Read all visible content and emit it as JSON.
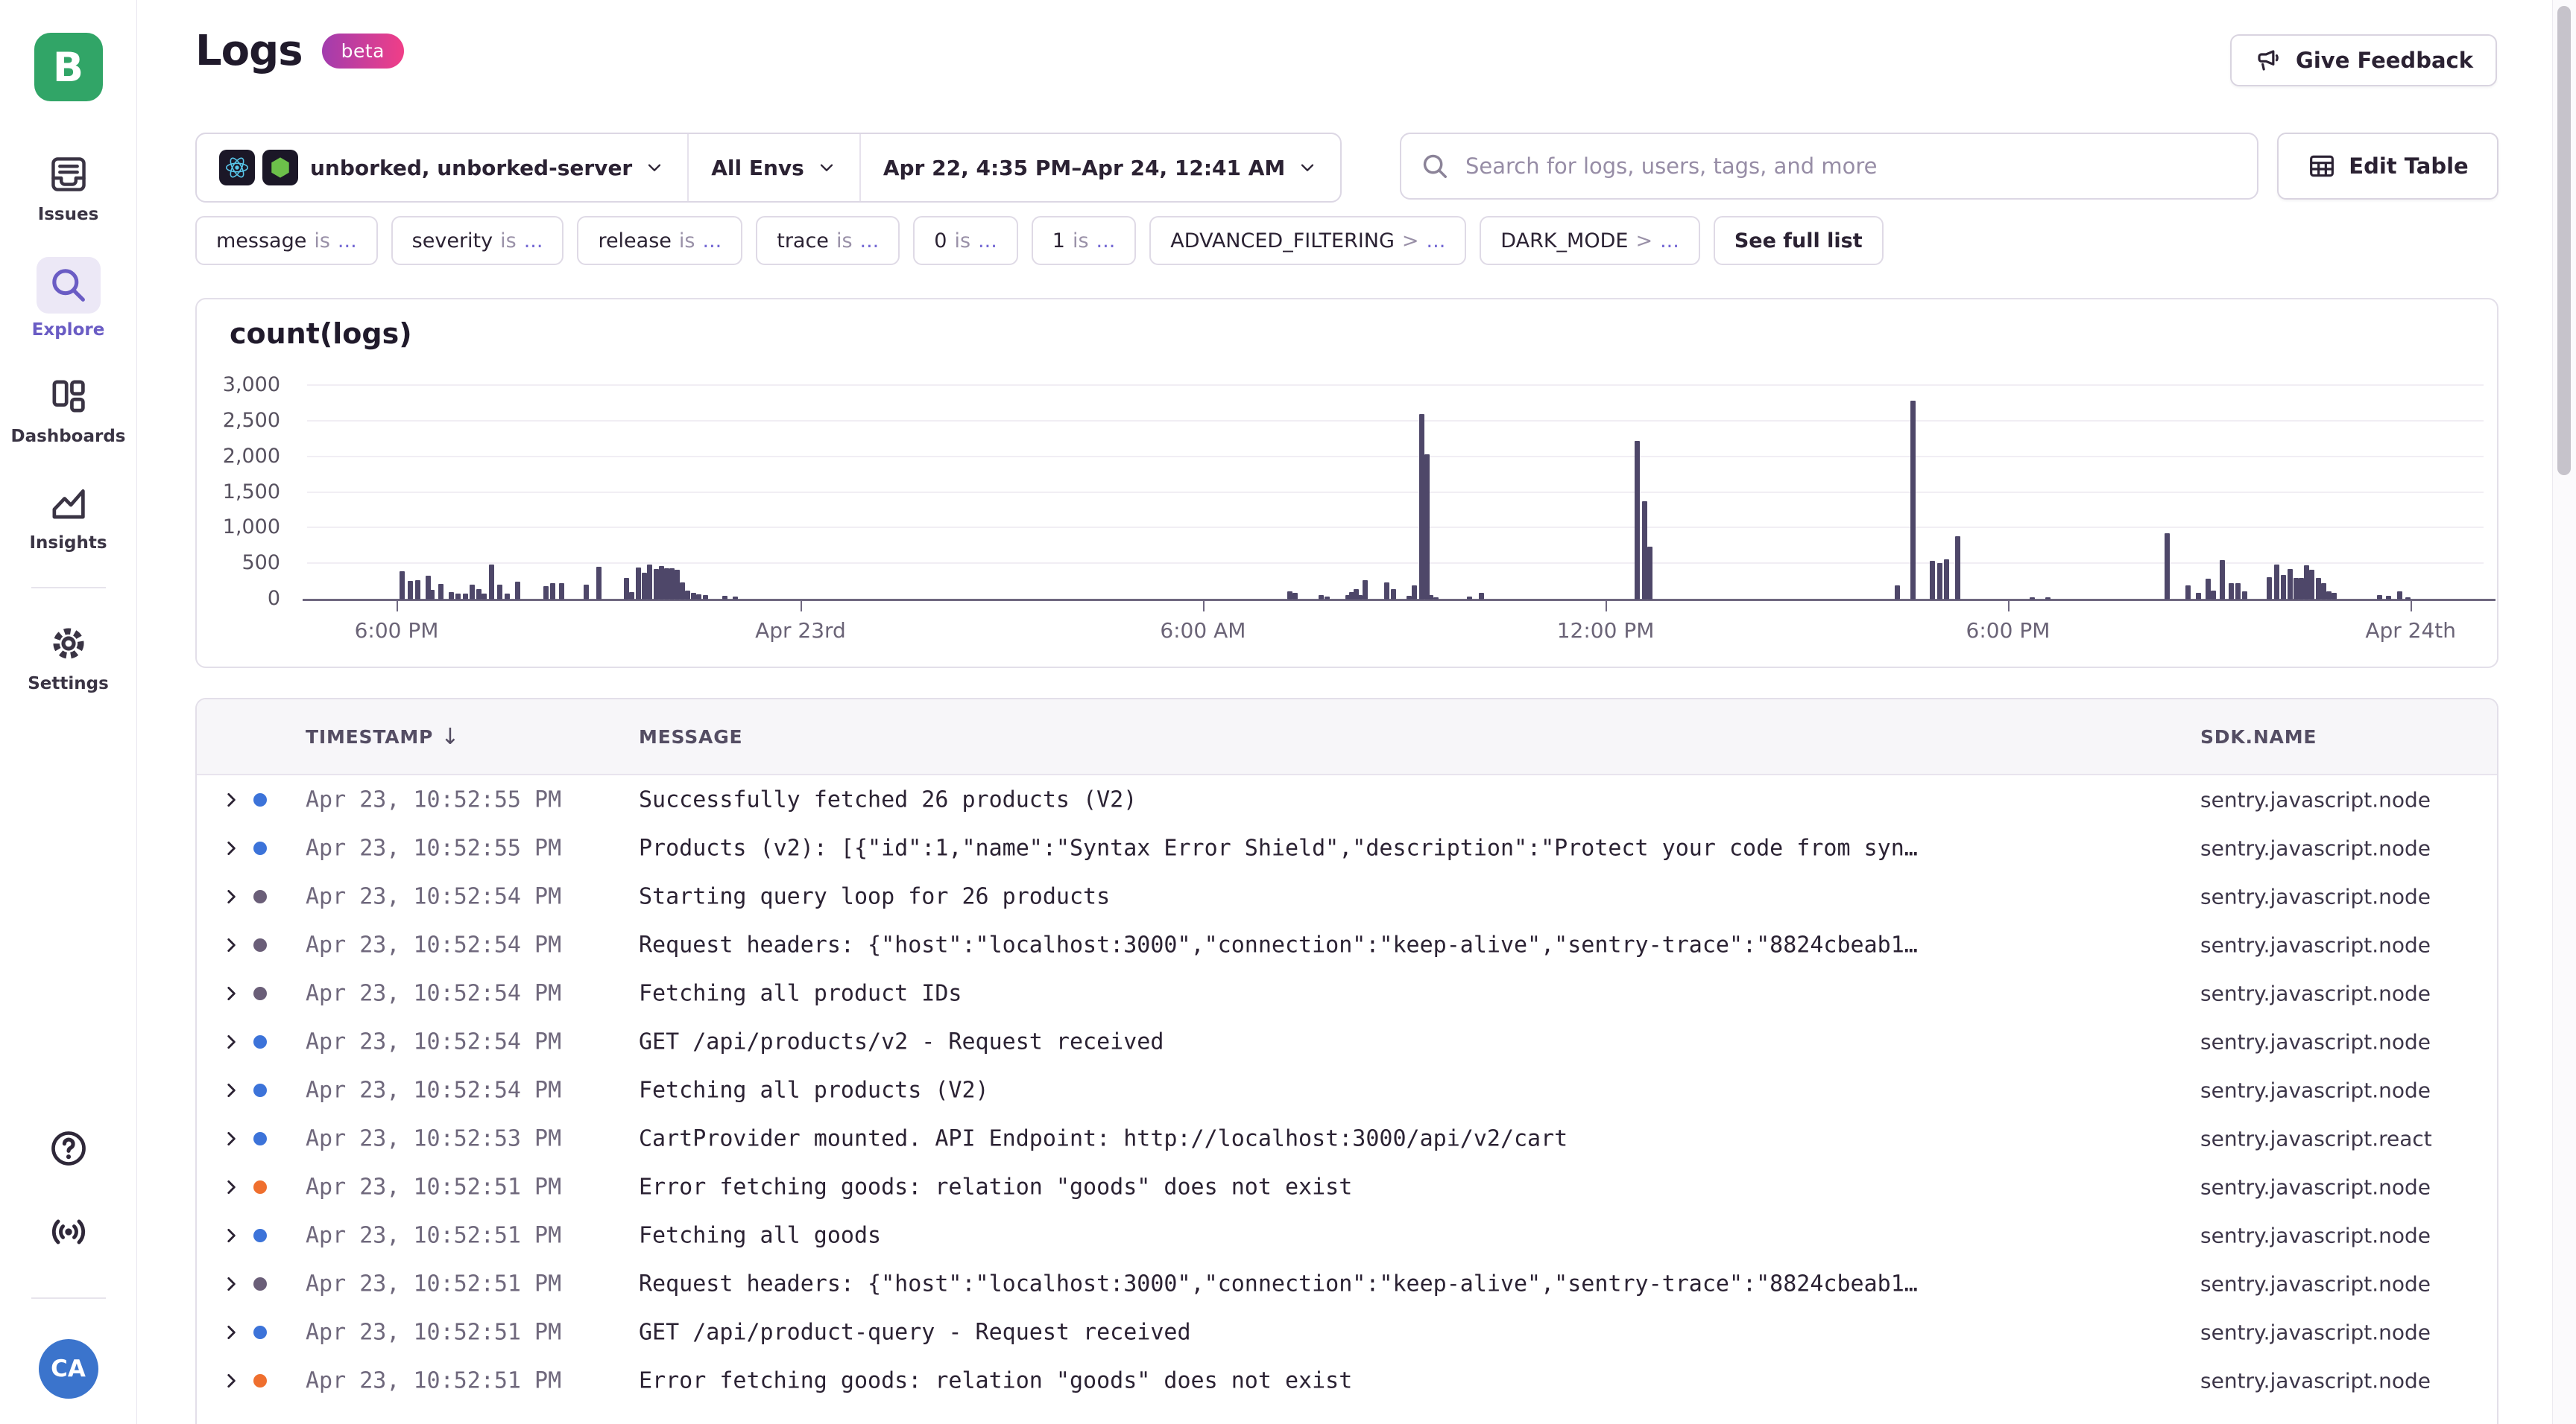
{
  "colors": {
    "accent_purple": "#6a5cc4",
    "logo_green": "#31a567",
    "avatar_blue": "#3b74cc",
    "bar_color": "#4e4769",
    "beta_gradient_start": "#a13dae",
    "beta_gradient_end": "#f13e87",
    "severity": {
      "info": "#3c73d9",
      "debug": "#6a5e78",
      "error": "#ef6f2e"
    }
  },
  "sidebar": {
    "logo_letter": "B",
    "items": [
      {
        "label": "Issues"
      },
      {
        "label": "Explore"
      },
      {
        "label": "Dashboards"
      },
      {
        "label": "Insights"
      },
      {
        "label": "Settings"
      }
    ],
    "avatar_initials": "CA"
  },
  "header": {
    "title": "Logs",
    "beta_label": "beta",
    "feedback_label": "Give Feedback"
  },
  "filters": {
    "project_label": "unborked, unborked-server",
    "env_label": "All Envs",
    "date_label": "Apr 22, 4:35 PM–Apr 24, 12:41 AM",
    "search_placeholder": "Search for logs, users, tags, and more",
    "edit_table_label": "Edit Table",
    "chips": [
      {
        "key": "message",
        "op": "is",
        "value": "..."
      },
      {
        "key": "severity",
        "op": "is",
        "value": "..."
      },
      {
        "key": "release",
        "op": "is",
        "value": "..."
      },
      {
        "key": "trace",
        "op": "is",
        "value": "..."
      },
      {
        "key": "0",
        "op": "is",
        "value": "..."
      },
      {
        "key": "1",
        "op": "is",
        "value": "..."
      },
      {
        "key": "ADVANCED_FILTERING",
        "op": ">",
        "value": "..."
      },
      {
        "key": "DARK_MODE",
        "op": ">",
        "value": "..."
      }
    ],
    "see_full_list_label": "See full list"
  },
  "chart_data": {
    "type": "bar",
    "title": "count(logs)",
    "xlabel": "",
    "ylabel": "",
    "ylim": [
      0,
      3000
    ],
    "grid": true,
    "legend": false,
    "yticks": [
      0,
      500,
      1000,
      1500,
      2000,
      2500,
      3000
    ],
    "ytick_labels": [
      "0",
      "500",
      "1,000",
      "1,500",
      "2,000",
      "2,500",
      "3,000"
    ],
    "xticks": [
      {
        "pos": 0.0411,
        "label": "6:00 PM"
      },
      {
        "pos": 0.2267,
        "label": "Apr 23rd"
      },
      {
        "pos": 0.4116,
        "label": "6:00 AM"
      },
      {
        "pos": 0.5966,
        "label": "12:00 PM"
      },
      {
        "pos": 0.7815,
        "label": "6:00 PM"
      },
      {
        "pos": 0.9665,
        "label": "Apr 24th"
      }
    ],
    "bars": [
      [
        0.0435,
        395
      ],
      [
        0.0473,
        260
      ],
      [
        0.0507,
        270
      ],
      [
        0.0555,
        335
      ],
      [
        0.0575,
        140
      ],
      [
        0.0616,
        215
      ],
      [
        0.0661,
        105
      ],
      [
        0.0692,
        85
      ],
      [
        0.0729,
        85
      ],
      [
        0.076,
        205
      ],
      [
        0.0788,
        145
      ],
      [
        0.0815,
        85
      ],
      [
        0.0846,
        490
      ],
      [
        0.0884,
        205
      ],
      [
        0.0918,
        85
      ],
      [
        0.0969,
        250
      ],
      [
        0.1096,
        185
      ],
      [
        0.113,
        225
      ],
      [
        0.1171,
        235
      ],
      [
        0.1284,
        210
      ],
      [
        0.1342,
        465
      ],
      [
        0.1466,
        300
      ],
      [
        0.1493,
        105
      ],
      [
        0.1521,
        445
      ],
      [
        0.1548,
        380
      ],
      [
        0.1575,
        490
      ],
      [
        0.1603,
        425
      ],
      [
        0.1627,
        475
      ],
      [
        0.1651,
        440
      ],
      [
        0.1678,
        435
      ],
      [
        0.1702,
        415
      ],
      [
        0.1723,
        240
      ],
      [
        0.1747,
        130
      ],
      [
        0.1774,
        90
      ],
      [
        0.1801,
        75
      ],
      [
        0.1829,
        60
      ],
      [
        0.1918,
        55
      ],
      [
        0.1969,
        45
      ],
      [
        0.4517,
        120
      ],
      [
        0.4538,
        90
      ],
      [
        0.4658,
        65
      ],
      [
        0.4685,
        45
      ],
      [
        0.4781,
        65
      ],
      [
        0.4801,
        100
      ],
      [
        0.4819,
        145
      ],
      [
        0.4836,
        65
      ],
      [
        0.4863,
        270
      ],
      [
        0.4962,
        245
      ],
      [
        0.499,
        150
      ],
      [
        0.5062,
        55
      ],
      [
        0.5089,
        195
      ],
      [
        0.512,
        2605
      ],
      [
        0.5144,
        2040
      ],
      [
        0.5164,
        65
      ],
      [
        0.5185,
        30
      ],
      [
        0.5342,
        45
      ],
      [
        0.5397,
        90
      ],
      [
        0.6113,
        2230
      ],
      [
        0.6147,
        1380
      ],
      [
        0.6171,
        740
      ],
      [
        0.7305,
        200
      ],
      [
        0.738,
        2790
      ],
      [
        0.7466,
        540
      ],
      [
        0.75,
        510
      ],
      [
        0.7534,
        560
      ],
      [
        0.7585,
        890
      ],
      [
        0.7928,
        30
      ],
      [
        0.7997,
        35
      ],
      [
        0.8545,
        930
      ],
      [
        0.8641,
        200
      ],
      [
        0.8689,
        90
      ],
      [
        0.8733,
        290
      ],
      [
        0.876,
        130
      ],
      [
        0.8801,
        550
      ],
      [
        0.8842,
        230
      ],
      [
        0.887,
        230
      ],
      [
        0.8904,
        110
      ],
      [
        0.9017,
        310
      ],
      [
        0.9051,
        490
      ],
      [
        0.9082,
        350
      ],
      [
        0.911,
        430
      ],
      [
        0.9137,
        300
      ],
      [
        0.9161,
        300
      ],
      [
        0.9188,
        480
      ],
      [
        0.9212,
        420
      ],
      [
        0.924,
        300
      ],
      [
        0.9264,
        230
      ],
      [
        0.9288,
        120
      ],
      [
        0.9315,
        90
      ],
      [
        0.9521,
        60
      ],
      [
        0.9565,
        50
      ],
      [
        0.9616,
        110
      ],
      [
        0.9651,
        30
      ]
    ]
  },
  "table": {
    "columns": [
      "TIMESTAMP",
      "MESSAGE",
      "SDK.NAME"
    ],
    "sort_indicator": "↓",
    "rows": [
      {
        "severity": "info",
        "timestamp": "Apr 23, 10:52:55 PM",
        "message": "Successfully fetched 26 products (V2)",
        "sdk": "sentry.javascript.node"
      },
      {
        "severity": "info",
        "timestamp": "Apr 23, 10:52:55 PM",
        "message": "Products (v2): [{\"id\":1,\"name\":\"Syntax Error Shield\",\"description\":\"Protect your code from syn…",
        "sdk": "sentry.javascript.node"
      },
      {
        "severity": "debug",
        "timestamp": "Apr 23, 10:52:54 PM",
        "message": "Starting query loop for 26 products",
        "sdk": "sentry.javascript.node"
      },
      {
        "severity": "debug",
        "timestamp": "Apr 23, 10:52:54 PM",
        "message": "Request headers: {\"host\":\"localhost:3000\",\"connection\":\"keep-alive\",\"sentry-trace\":\"8824cbeab1…",
        "sdk": "sentry.javascript.node"
      },
      {
        "severity": "debug",
        "timestamp": "Apr 23, 10:52:54 PM",
        "message": "Fetching all product IDs",
        "sdk": "sentry.javascript.node"
      },
      {
        "severity": "info",
        "timestamp": "Apr 23, 10:52:54 PM",
        "message": "GET /api/products/v2 - Request received",
        "sdk": "sentry.javascript.node"
      },
      {
        "severity": "info",
        "timestamp": "Apr 23, 10:52:54 PM",
        "message": "Fetching all products (V2)",
        "sdk": "sentry.javascript.node"
      },
      {
        "severity": "info",
        "timestamp": "Apr 23, 10:52:53 PM",
        "message": "CartProvider mounted. API Endpoint: http://localhost:3000/api/v2/cart",
        "sdk": "sentry.javascript.react"
      },
      {
        "severity": "error",
        "timestamp": "Apr 23, 10:52:51 PM",
        "message": "Error fetching goods: relation \"goods\" does not exist",
        "sdk": "sentry.javascript.node"
      },
      {
        "severity": "info",
        "timestamp": "Apr 23, 10:52:51 PM",
        "message": "Fetching all goods",
        "sdk": "sentry.javascript.node"
      },
      {
        "severity": "debug",
        "timestamp": "Apr 23, 10:52:51 PM",
        "message": "Request headers: {\"host\":\"localhost:3000\",\"connection\":\"keep-alive\",\"sentry-trace\":\"8824cbeab1…",
        "sdk": "sentry.javascript.node"
      },
      {
        "severity": "info",
        "timestamp": "Apr 23, 10:52:51 PM",
        "message": "GET /api/product-query - Request received",
        "sdk": "sentry.javascript.node"
      },
      {
        "severity": "error",
        "timestamp": "Apr 23, 10:52:51 PM",
        "message": "Error fetching goods: relation \"goods\" does not exist",
        "sdk": "sentry.javascript.node"
      }
    ]
  }
}
